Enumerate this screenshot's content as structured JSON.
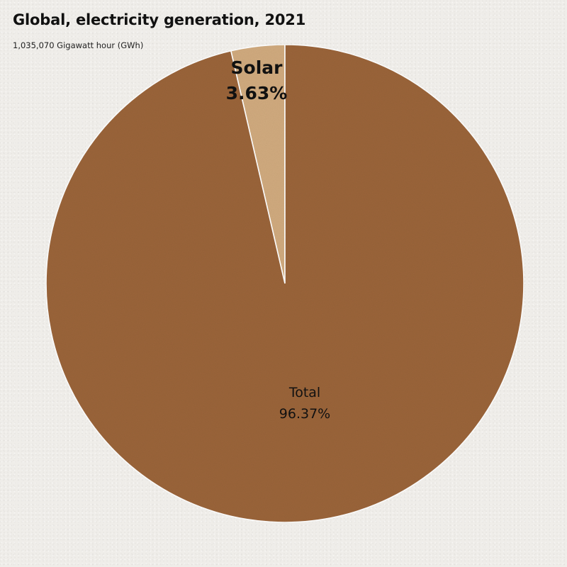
{
  "chart_data": {
    "type": "pie",
    "title": "Global, electricity generation, 2021",
    "subtitle": "1,035,070 Gigawatt hour (GWh)",
    "slices": [
      {
        "label": "Solar",
        "value": 3.63,
        "display_value": "3.63%",
        "color": "#d0aa7e",
        "label_weight": "bold"
      },
      {
        "label": "Total",
        "value": 96.37,
        "display_value": "96.37%",
        "color": "#9a643a",
        "label_weight": "normal"
      }
    ],
    "start_angle_deg": -13.07,
    "slice_border_color": "#ffffff"
  }
}
